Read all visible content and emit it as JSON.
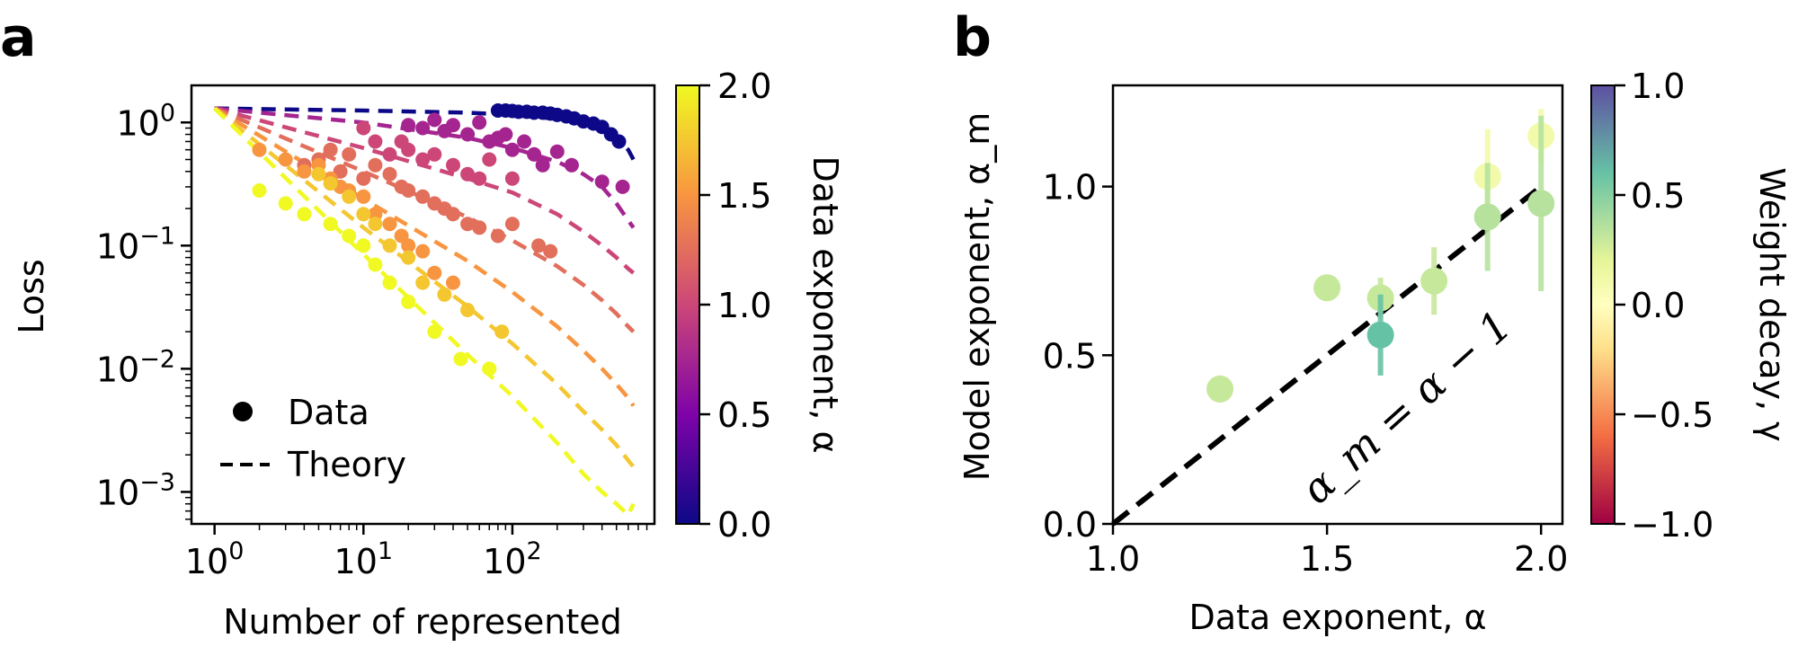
{
  "panels": {
    "a": {
      "letter": "a"
    },
    "b": {
      "letter": "b"
    }
  },
  "chart_data": [
    {
      "panel": "a",
      "type": "scatter",
      "xlabel": "Number of represented",
      "ylabel": "Loss",
      "x_scale": "log",
      "y_scale": "log",
      "xlim": [
        0.7,
        900
      ],
      "ylim": [
        0.00055,
        2.0
      ],
      "x_ticks": [
        {
          "value": 1,
          "label": "10^0"
        },
        {
          "value": 10,
          "label": "10^1"
        },
        {
          "value": 100,
          "label": "10^2"
        }
      ],
      "y_ticks": [
        {
          "value": 1,
          "label": "10^0"
        },
        {
          "value": 0.1,
          "label": "10^-1"
        },
        {
          "value": 0.01,
          "label": "10^-2"
        },
        {
          "value": 0.001,
          "label": "10^-3"
        }
      ],
      "legend": {
        "position": "lower-left",
        "entries": [
          {
            "label": "Data",
            "marker": "circle"
          },
          {
            "label": "Theory",
            "marker": "dashed-line"
          }
        ]
      },
      "colorbar": {
        "label": "Data exponent, α",
        "colormap": "plasma",
        "range": [
          0.0,
          2.0
        ],
        "ticks": [
          "0.0",
          "0.5",
          "1.0",
          "1.5",
          "2.0"
        ]
      },
      "series": [
        {
          "alpha": 0.0,
          "theory": {
            "x": [
              1,
              10,
              50,
              100,
              200,
              300,
              400,
              500,
              600,
              650
            ],
            "y": [
              1.3,
              1.25,
              1.2,
              1.15,
              1.07,
              0.98,
              0.88,
              0.75,
              0.6,
              0.5
            ]
          },
          "points": {
            "x": [
              80,
              90,
              100,
              110,
              125,
              140,
              160,
              180,
              200,
              230,
              260,
              300,
              350,
              400,
              460,
              520
            ],
            "y": [
              1.25,
              1.25,
              1.24,
              1.22,
              1.22,
              1.2,
              1.2,
              1.18,
              1.15,
              1.12,
              1.08,
              1.02,
              0.98,
              0.92,
              0.8,
              0.7
            ]
          }
        },
        {
          "alpha": 0.75,
          "theory": {
            "x": [
              1,
              10,
              50,
              100,
              200,
              300,
              400,
              500,
              600,
              650
            ],
            "y": [
              1.3,
              1.0,
              0.75,
              0.62,
              0.48,
              0.38,
              0.3,
              0.22,
              0.16,
              0.14
            ]
          },
          "points": {
            "x": [
              20,
              25,
              30,
              35,
              40,
              50,
              60,
              70,
              80,
              90,
              100,
              120,
              140,
              160,
              200,
              250,
              400,
              550
            ],
            "y": [
              0.95,
              0.9,
              1.05,
              0.85,
              0.95,
              0.8,
              1.0,
              0.7,
              0.75,
              0.8,
              0.6,
              0.7,
              0.55,
              0.45,
              0.58,
              0.45,
              0.33,
              0.3
            ]
          }
        },
        {
          "alpha": 1.0,
          "theory": {
            "x": [
              1,
              10,
              50,
              100,
              200,
              300,
              400,
              500,
              600,
              650
            ],
            "y": [
              1.3,
              0.62,
              0.35,
              0.27,
              0.18,
              0.13,
              0.1,
              0.08,
              0.065,
              0.06
            ]
          },
          "points": {
            "x": [
              10,
              12,
              15,
              18,
              20,
              25,
              30,
              40,
              50,
              60,
              70,
              100
            ],
            "y": [
              0.9,
              0.7,
              0.55,
              0.7,
              0.6,
              0.5,
              0.55,
              0.45,
              0.38,
              0.35,
              0.5,
              0.35
            ]
          }
        },
        {
          "alpha": 1.25,
          "theory": {
            "x": [
              1,
              10,
              50,
              100,
              200,
              300,
              400,
              500,
              600,
              650
            ],
            "y": [
              1.3,
              0.4,
              0.17,
              0.11,
              0.068,
              0.048,
              0.036,
              0.028,
              0.022,
              0.02
            ]
          },
          "points": {
            "x": [
              4,
              5,
              6,
              7,
              8,
              10,
              12,
              15,
              18,
              20,
              25,
              30,
              35,
              40,
              50,
              60,
              80,
              100,
              150,
              180
            ],
            "y": [
              0.45,
              0.5,
              0.6,
              0.4,
              0.55,
              0.35,
              0.45,
              0.38,
              0.3,
              0.28,
              0.25,
              0.22,
              0.2,
              0.18,
              0.15,
              0.14,
              0.12,
              0.15,
              0.1,
              0.09
            ]
          }
        },
        {
          "alpha": 1.5,
          "theory": {
            "x": [
              1,
              10,
              50,
              100,
              200,
              300,
              400,
              500,
              600,
              650
            ],
            "y": [
              1.3,
              0.24,
              0.075,
              0.042,
              0.022,
              0.014,
              0.01,
              0.0075,
              0.0058,
              0.005
            ]
          },
          "points": {
            "x": [
              2,
              3,
              4,
              5,
              6,
              7,
              8,
              10,
              12,
              15,
              18,
              20,
              25,
              30,
              40
            ],
            "y": [
              0.6,
              0.5,
              0.4,
              0.45,
              0.35,
              0.3,
              0.28,
              0.25,
              0.18,
              0.15,
              0.12,
              0.1,
              0.09,
              0.06,
              0.05
            ]
          }
        },
        {
          "alpha": 1.75,
          "theory": {
            "x": [
              1,
              10,
              50,
              100,
              200,
              300,
              400,
              500,
              600,
              650
            ],
            "y": [
              1.3,
              0.14,
              0.032,
              0.016,
              0.0075,
              0.0045,
              0.0032,
              0.0024,
              0.0018,
              0.0016
            ]
          },
          "points": {
            "x": [
              5,
              6,
              8,
              10,
              12,
              15,
              20,
              25,
              35,
              50,
              85
            ],
            "y": [
              0.38,
              0.32,
              0.25,
              0.18,
              0.15,
              0.1,
              0.08,
              0.05,
              0.04,
              0.03,
              0.02
            ]
          }
        },
        {
          "alpha": 2.0,
          "theory": {
            "x": [
              1,
              10,
              50,
              100,
              200,
              300,
              400,
              500,
              600,
              650
            ],
            "y": [
              1.3,
              0.085,
              0.013,
              0.006,
              0.0025,
              0.0014,
              0.001,
              0.0008,
              0.00065,
              0.0008
            ]
          },
          "points": {
            "x": [
              2,
              3,
              4,
              6,
              8,
              10,
              12,
              15,
              20,
              30,
              45,
              70
            ],
            "y": [
              0.28,
              0.22,
              0.18,
              0.15,
              0.12,
              0.1,
              0.07,
              0.05,
              0.035,
              0.02,
              0.012,
              0.01
            ]
          }
        }
      ]
    },
    {
      "panel": "b",
      "type": "scatter",
      "xlabel": "Data exponent, α",
      "ylabel": "Model exponent, α_m",
      "xlim": [
        1.0,
        2.05
      ],
      "ylim": [
        0.0,
        1.3
      ],
      "x_ticks": [
        "1.0",
        "1.5",
        "2.0"
      ],
      "y_ticks": [
        "0.0",
        "0.5",
        "1.0"
      ],
      "annotation": "α_m = α − 1",
      "reference_line": {
        "label": "α_m = α − 1",
        "x": [
          1.0,
          2.0
        ],
        "y": [
          0.0,
          1.0
        ],
        "style": "dashed"
      },
      "colorbar": {
        "label": "Weight decay, γ",
        "colormap": "Spectral",
        "range": [
          -1.0,
          1.0
        ],
        "ticks": [
          "−1.0",
          "−0.5",
          "0.0",
          "0.5",
          "1.0"
        ]
      },
      "points": [
        {
          "x": 1.25,
          "y": 0.4,
          "err": 0.04,
          "gamma": 0.3
        },
        {
          "x": 1.5,
          "y": 0.7,
          "err": 0.03,
          "gamma": 0.3
        },
        {
          "x": 1.625,
          "y": 0.67,
          "err": 0.06,
          "gamma": 0.3
        },
        {
          "x": 1.625,
          "y": 0.56,
          "err": 0.12,
          "gamma": 0.6
        },
        {
          "x": 1.75,
          "y": 0.72,
          "err": 0.1,
          "gamma": 0.3
        },
        {
          "x": 1.875,
          "y": 1.03,
          "err": 0.14,
          "gamma": 0.1
        },
        {
          "x": 1.875,
          "y": 0.91,
          "err": 0.16,
          "gamma": 0.35
        },
        {
          "x": 2.0,
          "y": 1.15,
          "err": 0.08,
          "gamma": 0.1
        },
        {
          "x": 2.0,
          "y": 0.95,
          "err": 0.26,
          "gamma": 0.35
        }
      ]
    }
  ]
}
